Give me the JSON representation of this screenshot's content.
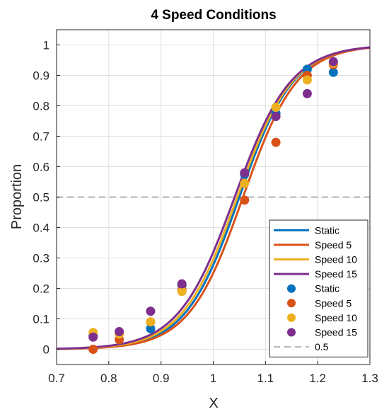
{
  "chart_data": {
    "type": "line",
    "title": "4 Speed Conditions",
    "xlabel": "X",
    "ylabel": "Proportion",
    "xlim": [
      0.7,
      1.3
    ],
    "ylim": [
      -0.05,
      1.05
    ],
    "xticks": [
      0.7,
      0.8,
      0.9,
      1,
      1.1,
      1.2,
      1.3
    ],
    "yticks": [
      0,
      0.1,
      0.2,
      0.3,
      0.4,
      0.5,
      0.6,
      0.7,
      0.8,
      0.9,
      1
    ],
    "grid": true,
    "legend_position": "bottom-right",
    "reference_line": {
      "name": "0.5",
      "y": 0.5,
      "color": "#b3b3b3",
      "style": "dashed"
    },
    "series": [
      {
        "name": "Static",
        "color": "#0072bd",
        "fit": {
          "model": "logistic",
          "mu": 1.05,
          "s": 0.052
        },
        "points": {
          "x": [
            0.77,
            0.82,
            0.88,
            0.94,
            1.06,
            1.12,
            1.18,
            1.23
          ],
          "y": [
            0.045,
            0.055,
            0.068,
            0.21,
            0.575,
            0.775,
            0.92,
            0.91
          ]
        }
      },
      {
        "name": "Speed 5",
        "color": "#d95319",
        "fit": {
          "model": "logistic",
          "mu": 1.057,
          "s": 0.052
        },
        "points": {
          "x": [
            0.77,
            0.82,
            0.88,
            0.94,
            1.06,
            1.12,
            1.18,
            1.23
          ],
          "y": [
            0.0,
            0.032,
            0.09,
            0.195,
            0.49,
            0.68,
            0.9,
            0.935
          ]
        }
      },
      {
        "name": "Speed 10",
        "color": "#edb120",
        "fit": {
          "model": "logistic",
          "mu": 1.046,
          "s": 0.053
        },
        "points": {
          "x": [
            0.77,
            0.82,
            0.88,
            0.94,
            1.06,
            1.12,
            1.18,
            1.23
          ],
          "y": [
            0.055,
            0.05,
            0.09,
            0.19,
            0.545,
            0.795,
            0.885,
            0.94
          ]
        }
      },
      {
        "name": "Speed 15",
        "color": "#7e2f8e",
        "fit": {
          "model": "logistic",
          "mu": 1.041,
          "s": 0.054
        },
        "points": {
          "x": [
            0.77,
            0.82,
            0.88,
            0.94,
            1.06,
            1.12,
            1.18,
            1.23
          ],
          "y": [
            0.04,
            0.058,
            0.125,
            0.215,
            0.58,
            0.765,
            0.84,
            0.945
          ]
        }
      }
    ]
  }
}
